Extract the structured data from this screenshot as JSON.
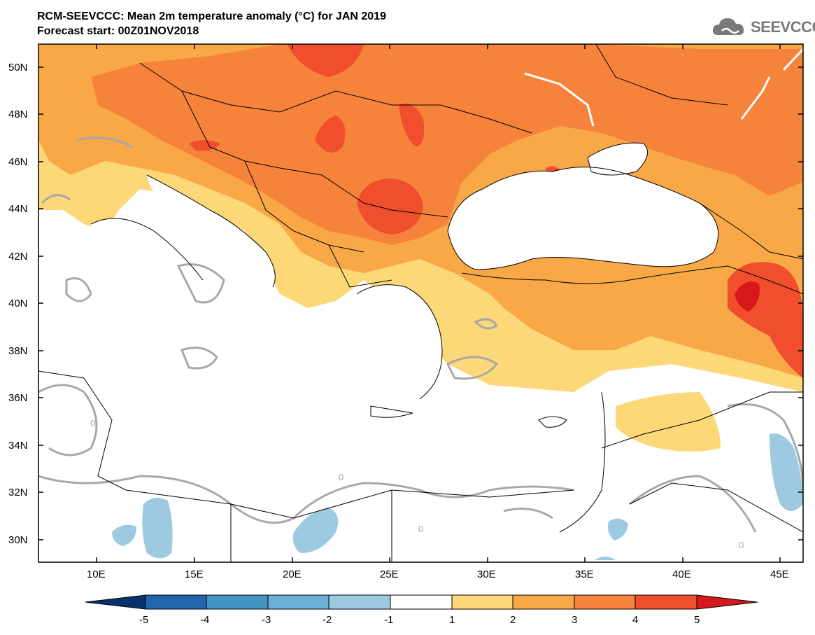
{
  "header": {
    "title": "RCM-SEEVCCC: Mean 2m temperature anomaly (°C) for JAN 2019",
    "subtitle": "Forecast start: 00Z01NOV2018"
  },
  "logo": {
    "text": "SEEVCCC",
    "icon": "cloud-icon"
  },
  "map": {
    "lat_labels": [
      "50N",
      "48N",
      "46N",
      "44N",
      "42N",
      "40N",
      "38N",
      "36N",
      "34N",
      "32N",
      "30N"
    ],
    "lon_labels": [
      "10E",
      "15E",
      "20E",
      "25E",
      "30E",
      "35E",
      "40E",
      "45E"
    ],
    "contour_label": "0"
  },
  "colorbar": {
    "labels": [
      "-5",
      "-4",
      "-3",
      "-2",
      "-1",
      "1",
      "2",
      "3",
      "4",
      "5"
    ],
    "colors": [
      "#08306b",
      "#2166ac",
      "#4393c3",
      "#6baed6",
      "#9ecae1",
      "#ffffff",
      "#fdd878",
      "#f9a847",
      "#f6833c",
      "#f04e2c",
      "#d7191c"
    ]
  }
}
